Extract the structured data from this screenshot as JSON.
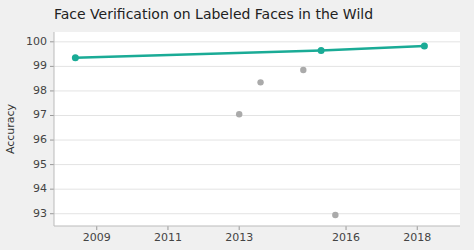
{
  "chart_data": {
    "type": "line",
    "title": "Face Verification on Labeled Faces in the Wild",
    "y_label": "Accuracy",
    "xlim": [
      2007.8,
      2019.2
    ],
    "ylim": [
      92.5,
      100.4
    ],
    "xticks": [
      2009,
      2011,
      2013,
      2016,
      2018
    ],
    "yticks": [
      93,
      94,
      95,
      96,
      97,
      98,
      99,
      100
    ],
    "grid": "y",
    "series": [
      {
        "type": "line",
        "marker": "circle",
        "color": "#1aab96",
        "x": [
          2008.4,
          2015.3,
          2018.2
        ],
        "values": [
          99.35,
          99.65,
          99.83
        ]
      },
      {
        "type": "scatter",
        "marker": "circle",
        "color": "#aaaaaa",
        "x": [
          2013.0,
          2013.6,
          2014.8,
          2015.7
        ],
        "values": [
          97.05,
          98.35,
          98.85,
          92.95
        ]
      }
    ]
  }
}
